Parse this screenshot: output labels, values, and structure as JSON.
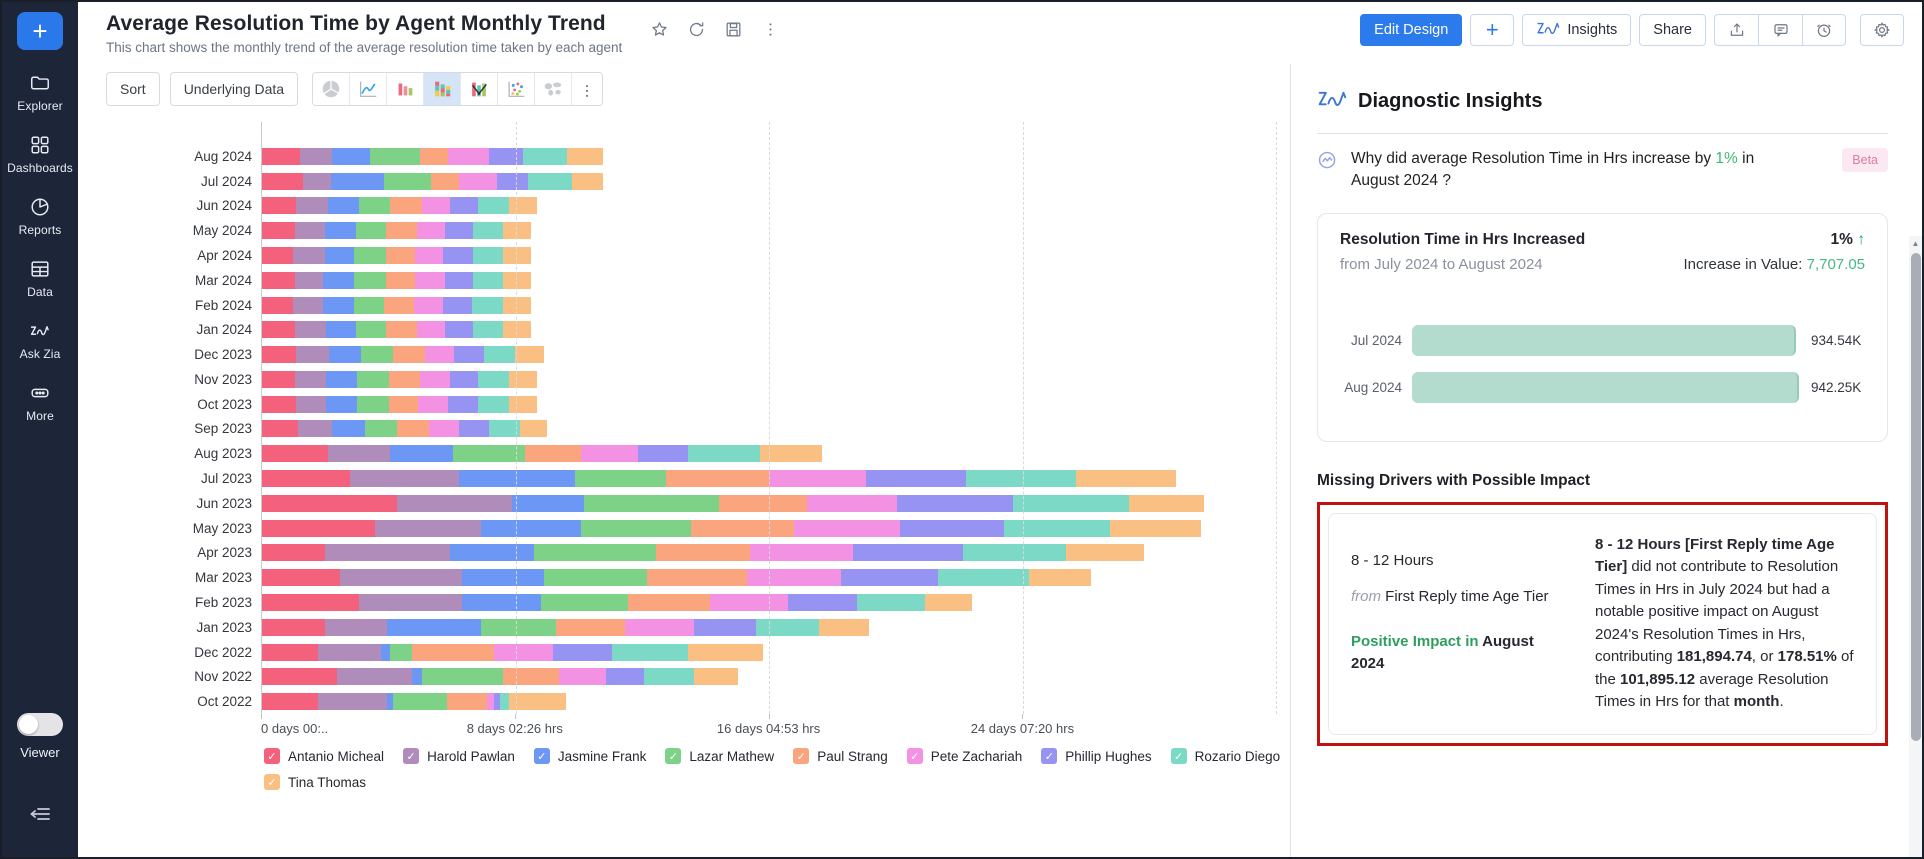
{
  "colors": {
    "accent_blue": "#2b7bec",
    "sidebar_bg": "#1c2638",
    "positive_green": "#2f9e5f",
    "value_green": "#47b881",
    "annotation_red": "#c11212",
    "insight_bar_teal": "#b3dbce"
  },
  "sidebar": {
    "add_button": "+",
    "items": [
      {
        "label": "Explorer",
        "icon": "folder-icon"
      },
      {
        "label": "Dashboards",
        "icon": "dashboards-icon"
      },
      {
        "label": "Reports",
        "icon": "reports-icon"
      },
      {
        "label": "Data",
        "icon": "data-icon"
      },
      {
        "label": "Ask Zia",
        "icon": "ask-zia-icon"
      },
      {
        "label": "More",
        "icon": "more-icon"
      }
    ],
    "viewer_label": "Viewer"
  },
  "header": {
    "title": "Average Resolution Time by Agent Monthly Trend",
    "subtitle": "This chart shows the monthly trend of the average resolution time taken by each agent",
    "title_icons": [
      "star-icon",
      "refresh-icon",
      "save-icon",
      "kebab-icon"
    ],
    "edit_design": "Edit Design",
    "plus": "+",
    "insights": "Insights",
    "share": "Share",
    "right_icons": [
      "upload-icon",
      "comment-icon",
      "clock-icon"
    ],
    "gear_icon": "gear-icon"
  },
  "toolbar": {
    "sort": "Sort",
    "underlying_data": "Underlying Data",
    "chart_types": [
      {
        "icon": "pie-chart-icon",
        "selected": false
      },
      {
        "icon": "line-chart-icon",
        "selected": false
      },
      {
        "icon": "bar-chart-icon",
        "selected": false
      },
      {
        "icon": "stacked-bar-icon",
        "selected": true
      },
      {
        "icon": "combo-chart-icon",
        "selected": false
      },
      {
        "icon": "scatter-chart-icon",
        "selected": false
      },
      {
        "icon": "map-chart-icon",
        "selected": false
      }
    ]
  },
  "chart_data": {
    "type": "bar",
    "stacked": true,
    "orientation": "horizontal",
    "title": "Average Resolution Time by Agent Monthly Trend",
    "xlabel": "",
    "ylabel": "",
    "unit": "days (resolution time)",
    "x_axis": {
      "max_days": 32.4,
      "grid": "dashed",
      "ticks": [
        {
          "days": 0,
          "label": "0 days 00:.."
        },
        {
          "days": 8.101,
          "label": "8 days 02:26 hrs"
        },
        {
          "days": 16.203,
          "label": "16 days 04:53 hrs"
        },
        {
          "days": 24.305,
          "label": "24 days 07:20 hrs"
        }
      ]
    },
    "legend_position": "bottom",
    "legend_rows": [
      8,
      1
    ],
    "series": [
      {
        "name": "Antanio Micheal",
        "color": "#f4617c"
      },
      {
        "name": "Harold Pawlan",
        "color": "#af8cba"
      },
      {
        "name": "Jasmine Frank",
        "color": "#6d97f5"
      },
      {
        "name": "Lazar Mathew",
        "color": "#7dd287"
      },
      {
        "name": "Paul Strang",
        "color": "#faa57e"
      },
      {
        "name": "Pete Zachariah",
        "color": "#f392e3"
      },
      {
        "name": "Phillip Hughes",
        "color": "#9793f2"
      },
      {
        "name": "Rozario Diego",
        "color": "#7cd9c6"
      },
      {
        "name": "Tina Thomas",
        "color": "#fac083"
      }
    ],
    "categories": [
      "Aug 2024",
      "Jul 2024",
      "Jun 2024",
      "May 2024",
      "Apr 2024",
      "Mar 2024",
      "Feb 2024",
      "Jan 2024",
      "Dec 2023",
      "Nov 2023",
      "Oct 2023",
      "Sep 2023",
      "Aug 2023",
      "Jul 2023",
      "Jun 2023",
      "May 2023",
      "Apr 2023",
      "Mar 2023",
      "Feb 2023",
      "Jan 2023",
      "Dec 2022",
      "Nov 2022",
      "Oct 2022"
    ],
    "values_days": [
      [
        1.2,
        1.05,
        1.2,
        1.6,
        0.9,
        1.3,
        1.1,
        1.4,
        1.15
      ],
      [
        1.3,
        0.9,
        1.7,
        1.5,
        0.9,
        1.2,
        1.0,
        1.4,
        1.0
      ],
      [
        1.1,
        1.0,
        1.0,
        1.0,
        1.0,
        0.9,
        0.9,
        1.0,
        0.9
      ],
      [
        1.05,
        0.95,
        1.0,
        0.95,
        1.0,
        0.9,
        0.9,
        0.95,
        0.9
      ],
      [
        1.0,
        1.0,
        0.95,
        1.0,
        0.95,
        0.9,
        0.95,
        0.95,
        0.9
      ],
      [
        1.05,
        0.9,
        1.0,
        1.0,
        0.95,
        0.95,
        0.9,
        0.95,
        0.9
      ],
      [
        1.0,
        0.95,
        1.0,
        0.95,
        0.95,
        0.95,
        0.9,
        1.0,
        0.9
      ],
      [
        1.05,
        1.0,
        0.95,
        0.95,
        1.0,
        0.9,
        0.9,
        0.95,
        0.9
      ],
      [
        1.1,
        1.05,
        1.0,
        1.05,
        1.0,
        0.95,
        0.95,
        1.0,
        0.9
      ],
      [
        1.05,
        1.0,
        1.0,
        1.0,
        1.0,
        0.95,
        0.9,
        1.0,
        0.9
      ],
      [
        1.1,
        0.95,
        1.0,
        1.0,
        0.95,
        0.95,
        0.95,
        1.0,
        0.9
      ],
      [
        1.15,
        1.1,
        1.05,
        1.0,
        1.05,
        0.95,
        0.95,
        1.0,
        0.85
      ],
      [
        2.1,
        2.0,
        2.0,
        2.3,
        1.8,
        1.8,
        1.6,
        2.3,
        2.0
      ],
      [
        2.8,
        3.5,
        3.7,
        2.9,
        3.3,
        3.1,
        3.2,
        3.5,
        3.2
      ],
      [
        4.3,
        3.7,
        2.3,
        4.3,
        2.8,
        2.9,
        3.7,
        3.7,
        2.4
      ],
      [
        3.6,
        3.4,
        3.2,
        3.5,
        3.3,
        3.4,
        3.3,
        3.4,
        2.9
      ],
      [
        2.0,
        4.0,
        2.7,
        3.9,
        3.0,
        3.3,
        3.5,
        3.3,
        2.5
      ],
      [
        2.5,
        3.9,
        2.6,
        3.3,
        3.2,
        3.0,
        3.1,
        2.9,
        2.0
      ],
      [
        3.1,
        3.3,
        2.5,
        2.8,
        2.6,
        2.5,
        2.2,
        2.2,
        1.5
      ],
      [
        2.0,
        2.0,
        3.0,
        2.4,
        2.2,
        2.2,
        2.0,
        2.0,
        1.6
      ],
      [
        1.8,
        2.0,
        0.3,
        0.7,
        2.6,
        1.9,
        1.9,
        2.4,
        2.4
      ],
      [
        2.4,
        2.4,
        0.3,
        2.6,
        1.8,
        1.5,
        1.2,
        1.6,
        1.4
      ],
      [
        1.8,
        2.2,
        0.2,
        1.7,
        1.3,
        0.2,
        0.2,
        0.3,
        1.8
      ]
    ]
  },
  "insights": {
    "panel_title": "Diagnostic Insights",
    "beta_label": "Beta",
    "question_segments": [
      {
        "text": "Why did average Resolution Time in Hrs increase by "
      },
      {
        "text": "1%",
        "color": "#3dba71"
      },
      {
        "text": " in August 2024 ?"
      }
    ],
    "summary_card": {
      "title": "Resolution Time in Hrs Increased",
      "subtitle": "from July 2024 to August 2024",
      "change_pct": "1%",
      "change_arrow": "↑",
      "increase_label": "Increase in Value: ",
      "increase_value": "7,707.05",
      "bars": [
        {
          "label": "Jul 2024",
          "value": 934.54,
          "value_label": "934.54K"
        },
        {
          "label": "Aug 2024",
          "value": 942.25,
          "value_label": "942.25K"
        }
      ]
    },
    "missing_drivers_title": "Missing Drivers with Possible Impact",
    "driver": {
      "name": "8 - 12 Hours",
      "from_word": "from",
      "source": " First Reply time Age Tier",
      "impact_text": "Positive Impact in",
      "impact_period": " August 2024",
      "description_segments": [
        {
          "text": "8 - 12 Hours [First Reply time Age Tier]",
          "bold": true
        },
        {
          "text": " did not contribute to Resolution Times in Hrs in July 2024 but had a notable positive impact on August 2024's Resolution Times in Hrs, contributing "
        },
        {
          "text": "181,894.74",
          "bold": true
        },
        {
          "text": ", or "
        },
        {
          "text": "178.51%",
          "bold": true
        },
        {
          "text": " of the "
        },
        {
          "text": "101,895.12",
          "bold": true
        },
        {
          "text": " average Resolution Times in Hrs for that "
        },
        {
          "text": "month",
          "bold": true
        },
        {
          "text": "."
        }
      ]
    }
  }
}
